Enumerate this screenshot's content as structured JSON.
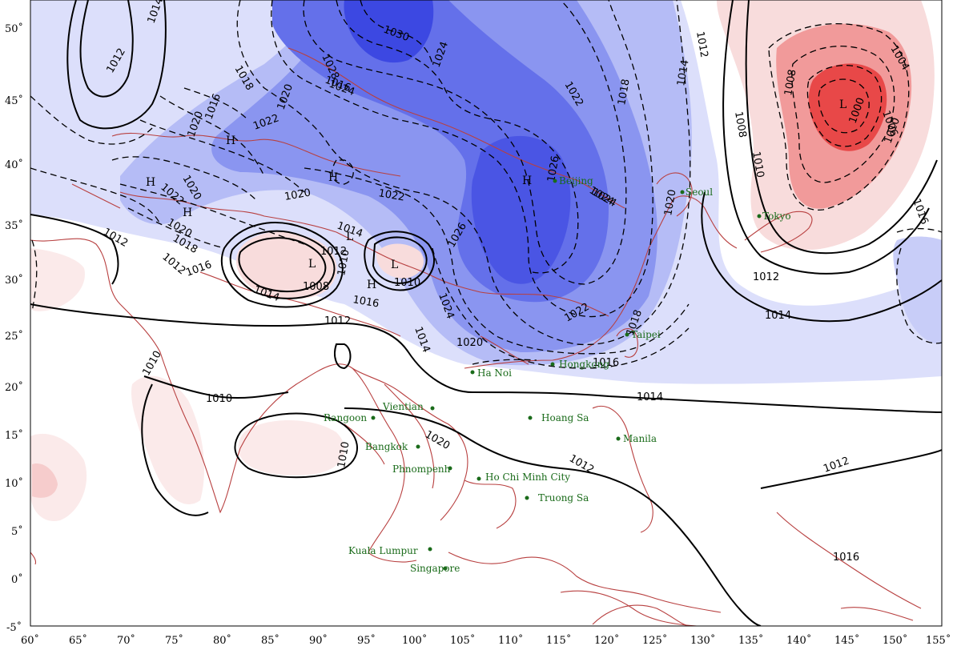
{
  "map": {
    "x_ticks": [
      "60˚",
      "65˚",
      "70˚",
      "75˚",
      "80˚",
      "85˚",
      "90˚",
      "95˚",
      "100˚",
      "105˚",
      "110˚",
      "115˚",
      "120˚",
      "125˚",
      "130˚",
      "135˚",
      "140˚",
      "145˚",
      "150˚",
      "155˚"
    ],
    "y_ticks": [
      "50˚",
      "45˚",
      "40˚",
      "35˚",
      "30˚",
      "25˚",
      "20˚",
      "15˚",
      "10˚",
      "5˚",
      "0˚",
      "-5˚"
    ],
    "isobar_labels": [
      "1014",
      "1012",
      "1030",
      "1028",
      "1024",
      "1022",
      "1018",
      "1016",
      "1020",
      "1020",
      "1016",
      "1022",
      "1020",
      "1020",
      "1022",
      "1024",
      "1026",
      "1024",
      "1020",
      "1018",
      "1014",
      "1012",
      "1010",
      "1008",
      "1006",
      "1004",
      "1000",
      "1008",
      "1010",
      "1012",
      "1014",
      "1016",
      "1012",
      "1014",
      "1016",
      "1010",
      "1012",
      "1014",
      "1018",
      "1016",
      "1020",
      "1022",
      "1024",
      "1026",
      "1008",
      "1010",
      "1010",
      "1012",
      "1010",
      "1014",
      "1012",
      "1010",
      "1012",
      "1016",
      "1018",
      "1020",
      "1022",
      "1024",
      "1020",
      "1016",
      "1012",
      "1014"
    ],
    "pressure_centers": [
      "H",
      "H",
      "H",
      "H",
      "H",
      "L",
      "L",
      "H",
      "L",
      "L"
    ],
    "cities": [
      "Beijing",
      "Seoul",
      "Tokyo",
      "Taipei",
      "Hongkong",
      "Ha Noi",
      "Vientian",
      "Rangoon",
      "Bangkok",
      "Phnompenh",
      "Ho Chi Minh City",
      "Hoang Sa",
      "Truong Sa",
      "Manila",
      "Kuala Lumpur",
      "Singapore"
    ]
  },
  "colors": {
    "high_dark": "#3340e0",
    "high_mid": "#6c78ec",
    "high_light": "#b5bcf6",
    "high_faint": "#dcdffb",
    "low_light": "#f8dcdc",
    "low_mid": "#f19a9a",
    "low_dark": "#e84848",
    "coast": "#b84040",
    "city": "#1a6b1a"
  }
}
